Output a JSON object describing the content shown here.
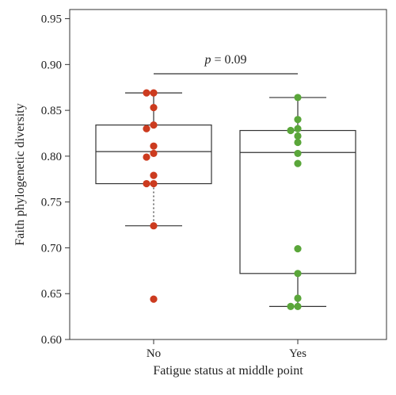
{
  "chart_data": {
    "type": "box",
    "xlabel": "Fatigue status at middle point",
    "ylabel": "Faith phylogenetic diversity",
    "categories": [
      "No",
      "Yes"
    ],
    "ylim": [
      0.6,
      0.96
    ],
    "yticks": [
      "0.60",
      "0.65",
      "0.70",
      "0.75",
      "0.80",
      "0.85",
      "0.90",
      "0.95"
    ],
    "grid": false,
    "annotation": {
      "p_symbol": "p",
      "p_text": " = 0.09"
    },
    "colors": {
      "No": "#cc3b1f",
      "Yes": "#5aa63a",
      "box": "#333333"
    },
    "boxes": [
      {
        "name": "No",
        "whisker_low": 0.724,
        "q1": 0.77,
        "median": 0.805,
        "q3": 0.834,
        "whisker_high": 0.869,
        "lower_whisker_style": "dotted",
        "points": [
          0.869,
          0.869,
          0.853,
          0.834,
          0.83,
          0.811,
          0.803,
          0.799,
          0.779,
          0.77,
          0.77,
          0.724,
          0.644
        ]
      },
      {
        "name": "Yes",
        "whisker_low": 0.636,
        "q1": 0.672,
        "median": 0.804,
        "q3": 0.828,
        "whisker_high": 0.864,
        "lower_whisker_style": "solid",
        "points": [
          0.864,
          0.84,
          0.83,
          0.828,
          0.822,
          0.815,
          0.803,
          0.792,
          0.699,
          0.672,
          0.645,
          0.636,
          0.636
        ]
      }
    ]
  }
}
